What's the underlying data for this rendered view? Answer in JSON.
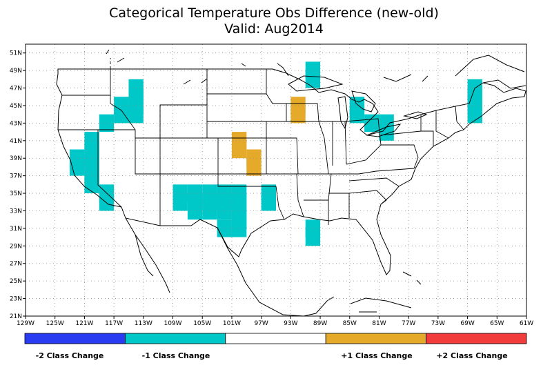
{
  "title": {
    "line1": "Categorical Temperature Obs Difference (new-old)",
    "line2": "Valid: Aug2014"
  },
  "map": {
    "lon_range": [
      -129,
      -61
    ],
    "lat_range": [
      21,
      52
    ],
    "grid": true,
    "lat_ticks": [
      "51N",
      "49N",
      "47N",
      "45N",
      "43N",
      "41N",
      "39N",
      "37N",
      "35N",
      "33N",
      "31N",
      "29N",
      "27N",
      "25N",
      "23N",
      "21N"
    ],
    "lon_ticks": [
      "129W",
      "125W",
      "121W",
      "117W",
      "113W",
      "109W",
      "105W",
      "101W",
      "97W",
      "93W",
      "89W",
      "85W",
      "81W",
      "77W",
      "73W",
      "69W",
      "65W",
      "61W"
    ]
  },
  "legend": {
    "classes": [
      {
        "label": "-2 Class Change",
        "color": "#2a3cf2"
      },
      {
        "label": "-1 Class Change",
        "color": "#00c8c8"
      },
      {
        "label": "",
        "color": "#ffffff"
      },
      {
        "label": "+1 Class Change",
        "color": "#e5aa2a"
      },
      {
        "label": "+2 Class Change",
        "color": "#f23c3c"
      }
    ]
  },
  "cells": {
    "minus1": [
      [
        -91,
        48
      ],
      [
        -91,
        47
      ],
      [
        -115,
        46
      ],
      [
        -115,
        45
      ],
      [
        -117,
        44
      ],
      [
        -115,
        44
      ],
      [
        -117,
        43
      ],
      [
        -115,
        43
      ],
      [
        -119,
        42
      ],
      [
        -121,
        40
      ],
      [
        -121,
        39
      ],
      [
        -123,
        38
      ],
      [
        -121,
        38
      ],
      [
        -123,
        37
      ],
      [
        -121,
        37
      ],
      [
        -121,
        36
      ],
      [
        -121,
        35
      ],
      [
        -119,
        34
      ],
      [
        -119,
        33
      ],
      [
        -109,
        34
      ],
      [
        -107,
        34
      ],
      [
        -105,
        34
      ],
      [
        -103,
        34
      ],
      [
        -101,
        34
      ],
      [
        -109,
        33
      ],
      [
        -107,
        33
      ],
      [
        -105,
        33
      ],
      [
        -103,
        33
      ],
      [
        -101,
        33
      ],
      [
        -107,
        32
      ],
      [
        -105,
        32
      ],
      [
        -103,
        32
      ],
      [
        -101,
        32
      ],
      [
        -101,
        31
      ],
      [
        -103,
        30
      ],
      [
        -101,
        30
      ],
      [
        -97,
        34
      ],
      [
        -97,
        33
      ],
      [
        -85,
        44
      ],
      [
        -85,
        43
      ],
      [
        -83,
        42
      ],
      [
        -81,
        42
      ],
      [
        -81,
        41
      ],
      [
        -69,
        46
      ],
      [
        -69,
        45
      ],
      [
        -69,
        44
      ],
      [
        -69,
        43
      ],
      [
        -91,
        30
      ],
      [
        -91,
        29
      ]
    ],
    "plus1": [
      [
        -93,
        44
      ],
      [
        -93,
        43
      ],
      [
        -101,
        40
      ],
      [
        -101,
        39
      ],
      [
        -99,
        38
      ],
      [
        -99,
        37
      ]
    ]
  }
}
